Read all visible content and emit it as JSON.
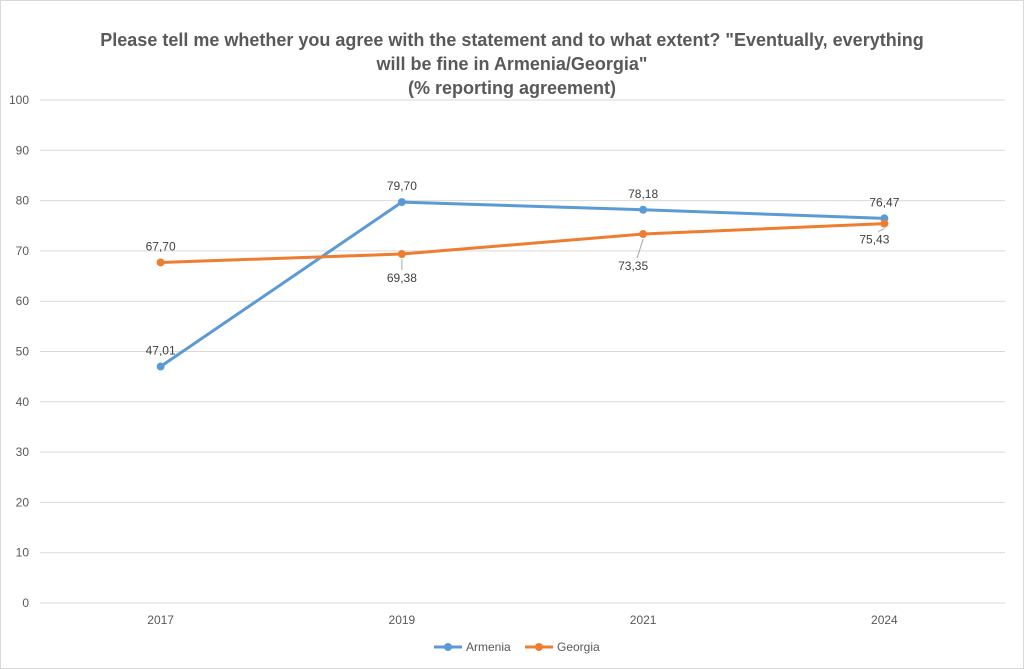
{
  "chart_data": {
    "type": "line",
    "title_lines": [
      "Please tell me whether you agree with the statement and to what extent? \"Eventually, everything",
      "will be fine in Armenia/Georgia\"",
      "(% reporting agreement)"
    ],
    "categories": [
      "2017",
      "2019",
      "2021",
      "2024"
    ],
    "series": [
      {
        "name": "Armenia",
        "color": "#5B9BD5",
        "values": [
          47.01,
          79.7,
          78.18,
          76.47
        ],
        "labels": [
          "47,01",
          "79,70",
          "78,18",
          "76,47"
        ]
      },
      {
        "name": "Georgia",
        "color": "#ED7D31",
        "values": [
          67.7,
          69.38,
          73.35,
          75.43
        ],
        "labels": [
          "67,70",
          "69,38",
          "73,35",
          "75,43"
        ]
      }
    ],
    "ylim": [
      0,
      100
    ],
    "yticks": [
      "0",
      "10",
      "20",
      "30",
      "40",
      "50",
      "60",
      "70",
      "80",
      "90",
      "100"
    ],
    "grid": true,
    "legend_position": "bottom"
  }
}
